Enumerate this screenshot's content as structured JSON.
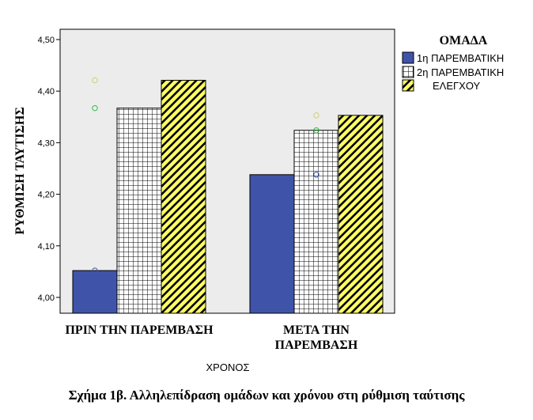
{
  "chart_data": {
    "type": "bar",
    "categories": [
      "ΠΡΙΝ ΤΗΝ ΠΑΡΕΜΒΑΣΗ",
      "ΜΕΤΑ ΤΗΝ ΠΑΡΕΜΒΑΣΗ"
    ],
    "xlabel": "ΧΡΟΝΟΣ",
    "ylabel": "ΡΥΘΜΙΣΗ ΤΑΥΤΙΣΗΣ",
    "ylim": [
      3.98,
      4.51
    ],
    "yticks": [
      "4,00",
      "4,10",
      "4,20",
      "4,30",
      "4,40",
      "4,50"
    ],
    "legend_title": "ΟΜΑΔΑ",
    "legend_position": "right",
    "series": [
      {
        "name": "1η ΠΑΡΕΜΒΑΤΙΚΗ",
        "values": [
          4.052,
          4.238
        ],
        "color": "#3f54a9",
        "pattern": "solid"
      },
      {
        "name": "2η ΠΑΡΕΜΒΑΤΙΚΗ",
        "values": [
          4.367,
          4.324
        ],
        "color": "#ffffff",
        "pattern": "grid"
      },
      {
        "name": "ΕΛΕΓΧΟΥ",
        "values": [
          4.421,
          4.353
        ],
        "color": "#ffff66",
        "pattern": "diagonal"
      }
    ],
    "markers": [
      {
        "category": 0,
        "value": 4.052,
        "color": "#3f54a9"
      },
      {
        "category": 0,
        "value": 4.367,
        "color": "#2fb84a"
      },
      {
        "category": 0,
        "value": 4.421,
        "color": "#d0d070"
      },
      {
        "category": 1,
        "value": 4.238,
        "color": "#3f54a9"
      },
      {
        "category": 1,
        "value": 4.324,
        "color": "#2fb84a"
      },
      {
        "category": 1,
        "value": 4.353,
        "color": "#d0d070"
      }
    ],
    "plot_background": "#ececec",
    "grid": false
  },
  "caption": "Σχήμα 1β. Αλληλεπίδραση ομάδων και χρόνου στη ρύθμιση ταύτισης"
}
